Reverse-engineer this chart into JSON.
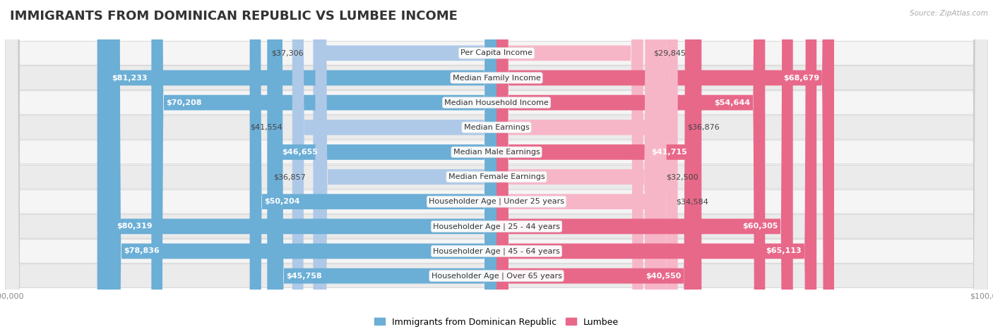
{
  "title": "IMMIGRANTS FROM DOMINICAN REPUBLIC VS LUMBEE INCOME",
  "source": "Source: ZipAtlas.com",
  "categories": [
    "Per Capita Income",
    "Median Family Income",
    "Median Household Income",
    "Median Earnings",
    "Median Male Earnings",
    "Median Female Earnings",
    "Householder Age | Under 25 years",
    "Householder Age | 25 - 44 years",
    "Householder Age | 45 - 64 years",
    "Householder Age | Over 65 years"
  ],
  "dominican": [
    37306,
    81233,
    70208,
    41554,
    46655,
    36857,
    50204,
    80319,
    78836,
    45758
  ],
  "lumbee": [
    29845,
    68679,
    54644,
    36876,
    41715,
    32500,
    34584,
    60305,
    65113,
    40550
  ],
  "dominican_color_light": "#aec9e8",
  "dominican_color_dark": "#6baed6",
  "lumbee_color_light": "#f7b6c8",
  "lumbee_color_dark": "#e8688a",
  "dominican_inside_threshold": 45000,
  "lumbee_inside_threshold": 40000,
  "axis_limit": 100000,
  "bar_height": 0.62,
  "row_bg_light": "#f5f5f5",
  "row_bg_dark": "#ebebeb",
  "title_fontsize": 13,
  "label_fontsize": 8.0,
  "category_fontsize": 8.0,
  "legend_fontsize": 9,
  "axis_tick_fontsize": 8,
  "legend_labels": [
    "Immigrants from Dominican Republic",
    "Lumbee"
  ]
}
